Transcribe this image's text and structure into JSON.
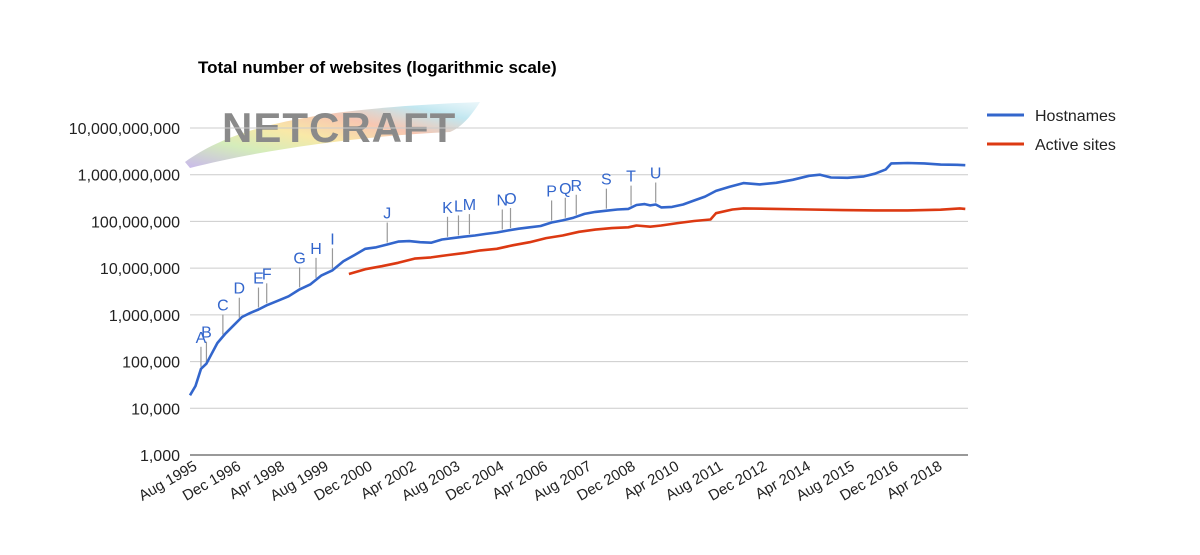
{
  "chart_data": {
    "type": "line",
    "title": "Total number of websites (logarithmic scale)",
    "xlabel": "",
    "ylabel": "",
    "y_scale": "log",
    "ylim": [
      1000,
      10000000000
    ],
    "y_ticks": [
      {
        "value": 1000,
        "label": "1,000"
      },
      {
        "value": 10000,
        "label": "10,000"
      },
      {
        "value": 100000,
        "label": "100,000"
      },
      {
        "value": 1000000,
        "label": "1,000,000"
      },
      {
        "value": 10000000,
        "label": "10,000,000"
      },
      {
        "value": 100000000,
        "label": "100,000,000"
      },
      {
        "value": 1000000000,
        "label": "1,000,000,000"
      },
      {
        "value": 10000000000,
        "label": "10,000,000,000"
      }
    ],
    "xlim": [
      "1995-08",
      "2019-04"
    ],
    "x_ticks": [
      {
        "date": "1995-08",
        "label": "Aug 1995"
      },
      {
        "date": "1996-12",
        "label": "Dec 1996"
      },
      {
        "date": "1998-04",
        "label": "Apr 1998"
      },
      {
        "date": "1999-08",
        "label": "Aug 1999"
      },
      {
        "date": "2000-12",
        "label": "Dec 2000"
      },
      {
        "date": "2002-04",
        "label": "Apr 2002"
      },
      {
        "date": "2003-08",
        "label": "Aug 2003"
      },
      {
        "date": "2004-12",
        "label": "Dec 2004"
      },
      {
        "date": "2006-04",
        "label": "Apr 2006"
      },
      {
        "date": "2007-08",
        "label": "Aug 2007"
      },
      {
        "date": "2008-12",
        "label": "Dec 2008"
      },
      {
        "date": "2010-04",
        "label": "Apr 2010"
      },
      {
        "date": "2011-08",
        "label": "Aug 2011"
      },
      {
        "date": "2012-12",
        "label": "Dec 2012"
      },
      {
        "date": "2014-04",
        "label": "Apr 2014"
      },
      {
        "date": "2015-08",
        "label": "Aug 2015"
      },
      {
        "date": "2016-12",
        "label": "Dec 2016"
      },
      {
        "date": "2018-04",
        "label": "Apr 2018"
      }
    ],
    "grid": true,
    "legend_position": "right",
    "series": [
      {
        "name": "Hostnames",
        "color": "#3366cc",
        "points": [
          [
            "1995-08",
            19000
          ],
          [
            "1995-10",
            30000
          ],
          [
            "1995-12",
            70000
          ],
          [
            "1996-02",
            90000
          ],
          [
            "1996-04",
            150000
          ],
          [
            "1996-06",
            250000
          ],
          [
            "1996-09",
            400000
          ],
          [
            "1996-12",
            600000
          ],
          [
            "1997-03",
            900000
          ],
          [
            "1997-06",
            1100000
          ],
          [
            "1997-09",
            1300000
          ],
          [
            "1997-12",
            1600000
          ],
          [
            "1998-04",
            2000000
          ],
          [
            "1998-08",
            2500000
          ],
          [
            "1998-12",
            3500000
          ],
          [
            "1999-04",
            4500000
          ],
          [
            "1999-08",
            7000000
          ],
          [
            "1999-12",
            9000000
          ],
          [
            "2000-04",
            14000000
          ],
          [
            "2000-08",
            19000000
          ],
          [
            "2000-12",
            26000000
          ],
          [
            "2001-04",
            28000000
          ],
          [
            "2001-08",
            32000000
          ],
          [
            "2001-12",
            37000000
          ],
          [
            "2002-04",
            38000000
          ],
          [
            "2002-08",
            36000000
          ],
          [
            "2002-12",
            35000000
          ],
          [
            "2003-04",
            41000000
          ],
          [
            "2003-08",
            44000000
          ],
          [
            "2003-12",
            47000000
          ],
          [
            "2004-04",
            50000000
          ],
          [
            "2004-08",
            54000000
          ],
          [
            "2004-12",
            58000000
          ],
          [
            "2005-04",
            64000000
          ],
          [
            "2005-08",
            70000000
          ],
          [
            "2005-12",
            75000000
          ],
          [
            "2006-04",
            80000000
          ],
          [
            "2006-08",
            95000000
          ],
          [
            "2006-12",
            105000000
          ],
          [
            "2007-04",
            120000000
          ],
          [
            "2007-08",
            145000000
          ],
          [
            "2007-12",
            160000000
          ],
          [
            "2008-04",
            170000000
          ],
          [
            "2008-08",
            180000000
          ],
          [
            "2008-12",
            185000000
          ],
          [
            "2009-03",
            225000000
          ],
          [
            "2009-06",
            235000000
          ],
          [
            "2009-08",
            220000000
          ],
          [
            "2009-10",
            230000000
          ],
          [
            "2009-12",
            200000000
          ],
          [
            "2010-04",
            205000000
          ],
          [
            "2010-08",
            230000000
          ],
          [
            "2010-12",
            280000000
          ],
          [
            "2011-04",
            340000000
          ],
          [
            "2011-08",
            450000000
          ],
          [
            "2012-01",
            550000000
          ],
          [
            "2012-06",
            660000000
          ],
          [
            "2012-12",
            620000000
          ],
          [
            "2013-06",
            670000000
          ],
          [
            "2013-12",
            780000000
          ],
          [
            "2014-06",
            950000000
          ],
          [
            "2014-10",
            1000000000
          ],
          [
            "2015-02",
            870000000
          ],
          [
            "2015-08",
            860000000
          ],
          [
            "2016-02",
            920000000
          ],
          [
            "2016-06",
            1050000000
          ],
          [
            "2016-10",
            1300000000
          ],
          [
            "2016-12",
            1750000000
          ],
          [
            "2017-06",
            1780000000
          ],
          [
            "2017-12",
            1750000000
          ],
          [
            "2018-06",
            1650000000
          ],
          [
            "2018-12",
            1630000000
          ],
          [
            "2019-03",
            1600000000
          ]
        ]
      },
      {
        "name": "Active sites",
        "color": "#dc3912",
        "points": [
          [
            "2000-06",
            7500000
          ],
          [
            "2000-12",
            9500000
          ],
          [
            "2001-06",
            11000000
          ],
          [
            "2001-12",
            13000000
          ],
          [
            "2002-06",
            16000000
          ],
          [
            "2002-12",
            17000000
          ],
          [
            "2003-06",
            19000000
          ],
          [
            "2003-12",
            21000000
          ],
          [
            "2004-06",
            24000000
          ],
          [
            "2004-12",
            26000000
          ],
          [
            "2005-06",
            31000000
          ],
          [
            "2005-12",
            36000000
          ],
          [
            "2006-06",
            44000000
          ],
          [
            "2006-12",
            50000000
          ],
          [
            "2007-06",
            60000000
          ],
          [
            "2007-12",
            67000000
          ],
          [
            "2008-06",
            72000000
          ],
          [
            "2008-12",
            75000000
          ],
          [
            "2009-03",
            82000000
          ],
          [
            "2009-08",
            77000000
          ],
          [
            "2009-12",
            82000000
          ],
          [
            "2010-06",
            92000000
          ],
          [
            "2010-12",
            102000000
          ],
          [
            "2011-06",
            110000000
          ],
          [
            "2011-08",
            150000000
          ],
          [
            "2012-02",
            180000000
          ],
          [
            "2012-06",
            190000000
          ],
          [
            "2013-06",
            185000000
          ],
          [
            "2014-06",
            180000000
          ],
          [
            "2015-06",
            175000000
          ],
          [
            "2016-06",
            172000000
          ],
          [
            "2017-06",
            172000000
          ],
          [
            "2018-06",
            178000000
          ],
          [
            "2019-01",
            190000000
          ],
          [
            "2019-03",
            185000000
          ]
        ]
      }
    ],
    "annotations": [
      {
        "label": "A",
        "date": "1995-12"
      },
      {
        "label": "B",
        "date": "1996-02"
      },
      {
        "label": "C",
        "date": "1996-08"
      },
      {
        "label": "D",
        "date": "1997-02"
      },
      {
        "label": "E",
        "date": "1997-09"
      },
      {
        "label": "F",
        "date": "1997-12"
      },
      {
        "label": "G",
        "date": "1998-12"
      },
      {
        "label": "H",
        "date": "1999-06"
      },
      {
        "label": "I",
        "date": "1999-12"
      },
      {
        "label": "J",
        "date": "2001-08"
      },
      {
        "label": "K",
        "date": "2003-06"
      },
      {
        "label": "L",
        "date": "2003-10"
      },
      {
        "label": "M",
        "date": "2004-02"
      },
      {
        "label": "N",
        "date": "2005-02"
      },
      {
        "label": "O",
        "date": "2005-05"
      },
      {
        "label": "P",
        "date": "2006-08"
      },
      {
        "label": "Q",
        "date": "2007-01"
      },
      {
        "label": "R",
        "date": "2007-05"
      },
      {
        "label": "S",
        "date": "2008-04"
      },
      {
        "label": "T",
        "date": "2009-01"
      },
      {
        "label": "U",
        "date": "2009-10"
      }
    ]
  },
  "watermark": {
    "text": "NETCRAFT"
  }
}
